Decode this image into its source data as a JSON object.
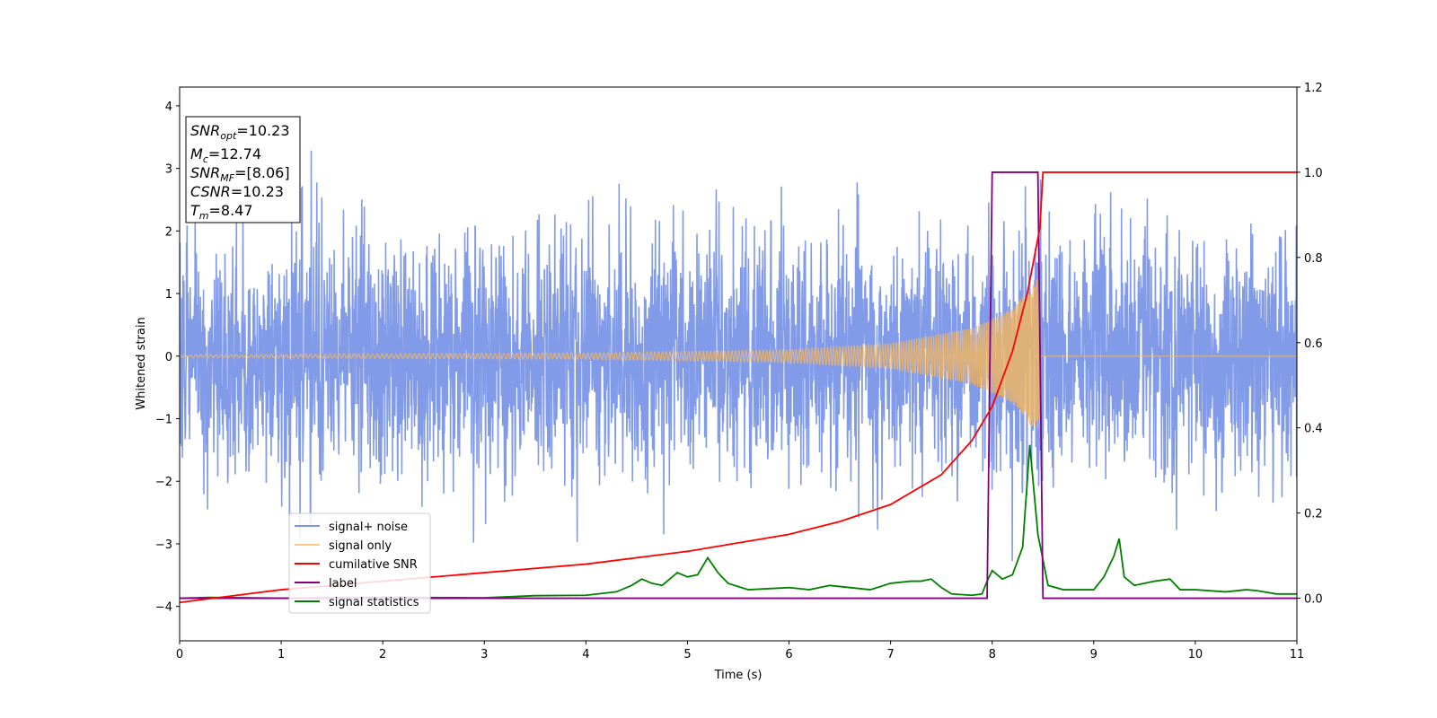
{
  "chart_data": {
    "type": "line",
    "xlabel": "Time (s)",
    "ylabel": "Whitened strain",
    "xlim": [
      0,
      11
    ],
    "ylim_left": [
      -4.55,
      4.3
    ],
    "ylim_right": [
      -0.1,
      1.2
    ],
    "x_ticks": [
      0,
      1,
      2,
      3,
      4,
      5,
      6,
      7,
      8,
      9,
      10,
      11
    ],
    "x_tick_labels": [
      "0",
      "1",
      "2",
      "3",
      "4",
      "5",
      "6",
      "7",
      "8",
      "9",
      "10",
      "11"
    ],
    "y_ticks_left": [
      4,
      3,
      2,
      1,
      0,
      -1,
      -2,
      -3,
      -4
    ],
    "y_tick_labels_left": [
      "4",
      "3",
      "2",
      "1",
      "0",
      "−1",
      "−2",
      "−3",
      "−4"
    ],
    "y_ticks_right": [
      1.2,
      1.0,
      0.8,
      0.6,
      0.4,
      0.2,
      0.0
    ],
    "y_tick_labels_right": [
      "1.2",
      "1.0",
      "0.8",
      "0.6",
      "0.4",
      "0.2",
      "0.0"
    ],
    "grid": false,
    "legend_position": "lower-left",
    "annotation": {
      "lines": [
        {
          "base": "SNR",
          "sub": "opt",
          "value": "=10.23"
        },
        {
          "base": "M",
          "sub": "c",
          "value": "=12.74"
        },
        {
          "base": "SNR",
          "sub": "MF",
          "value": "=[8.06]"
        },
        {
          "base": "CSNR",
          "sub": "",
          "value": "=10.23"
        },
        {
          "base": "T",
          "sub": "m",
          "value": "=8.47"
        }
      ]
    },
    "series": [
      {
        "name": "signal+ noise",
        "color": "#7b96e8",
        "axis": "left",
        "noise_std": 0.95,
        "peak_max": 3.9,
        "peak_min": -4.15
      },
      {
        "name": "signal only",
        "color": "#f5b65f",
        "axis": "left",
        "merger_time": 8.47,
        "envelope": [
          [
            0,
            0.02
          ],
          [
            4,
            0.05
          ],
          [
            6,
            0.1
          ],
          [
            7,
            0.2
          ],
          [
            7.8,
            0.45
          ],
          [
            8.2,
            0.75
          ],
          [
            8.45,
            1.25
          ]
        ]
      },
      {
        "name": "cumilative SNR",
        "color": "#ff0000",
        "axis": "right",
        "points": [
          [
            0,
            -0.01
          ],
          [
            1,
            0.02
          ],
          [
            2,
            0.04
          ],
          [
            3,
            0.06
          ],
          [
            4,
            0.08
          ],
          [
            5,
            0.11
          ],
          [
            6,
            0.15
          ],
          [
            6.5,
            0.18
          ],
          [
            7,
            0.22
          ],
          [
            7.5,
            0.29
          ],
          [
            7.8,
            0.37
          ],
          [
            8.0,
            0.45
          ],
          [
            8.2,
            0.58
          ],
          [
            8.35,
            0.72
          ],
          [
            8.47,
            0.87
          ],
          [
            8.5,
            1.0
          ],
          [
            11,
            1.0
          ]
        ]
      },
      {
        "name": "label",
        "color": "#800080",
        "axis": "right",
        "points": [
          [
            0,
            0.0
          ],
          [
            7.95,
            0.0
          ],
          [
            8.0,
            1.0
          ],
          [
            8.45,
            1.0
          ],
          [
            8.5,
            0.0
          ],
          [
            11,
            0.0
          ]
        ]
      },
      {
        "name": "signal statistics",
        "color": "#008000",
        "axis": "right",
        "points": [
          [
            0,
            0.0
          ],
          [
            0.3,
            0.002
          ],
          [
            1,
            0.0
          ],
          [
            2,
            0.002
          ],
          [
            3,
            0.001
          ],
          [
            3.5,
            0.006
          ],
          [
            4,
            0.007
          ],
          [
            4.3,
            0.015
          ],
          [
            4.45,
            0.03
          ],
          [
            4.55,
            0.045
          ],
          [
            4.65,
            0.035
          ],
          [
            4.75,
            0.03
          ],
          [
            4.8,
            0.04
          ],
          [
            4.9,
            0.06
          ],
          [
            5.0,
            0.05
          ],
          [
            5.1,
            0.055
          ],
          [
            5.2,
            0.095
          ],
          [
            5.3,
            0.06
          ],
          [
            5.4,
            0.035
          ],
          [
            5.6,
            0.02
          ],
          [
            6.0,
            0.025
          ],
          [
            6.2,
            0.02
          ],
          [
            6.4,
            0.03
          ],
          [
            6.6,
            0.025
          ],
          [
            6.8,
            0.02
          ],
          [
            7.0,
            0.035
          ],
          [
            7.2,
            0.04
          ],
          [
            7.3,
            0.04
          ],
          [
            7.4,
            0.045
          ],
          [
            7.5,
            0.025
          ],
          [
            7.6,
            0.01
          ],
          [
            7.8,
            0.007
          ],
          [
            7.9,
            0.01
          ],
          [
            7.95,
            0.04
          ],
          [
            8.0,
            0.065
          ],
          [
            8.1,
            0.045
          ],
          [
            8.2,
            0.055
          ],
          [
            8.3,
            0.12
          ],
          [
            8.37,
            0.36
          ],
          [
            8.45,
            0.15
          ],
          [
            8.55,
            0.03
          ],
          [
            8.7,
            0.02
          ],
          [
            9.0,
            0.02
          ],
          [
            9.1,
            0.05
          ],
          [
            9.2,
            0.1
          ],
          [
            9.25,
            0.14
          ],
          [
            9.3,
            0.05
          ],
          [
            9.4,
            0.03
          ],
          [
            9.6,
            0.04
          ],
          [
            9.75,
            0.045
          ],
          [
            9.85,
            0.02
          ],
          [
            10.0,
            0.02
          ],
          [
            10.3,
            0.015
          ],
          [
            10.5,
            0.02
          ],
          [
            10.6,
            0.018
          ],
          [
            10.8,
            0.01
          ],
          [
            11,
            0.01
          ]
        ]
      }
    ]
  }
}
